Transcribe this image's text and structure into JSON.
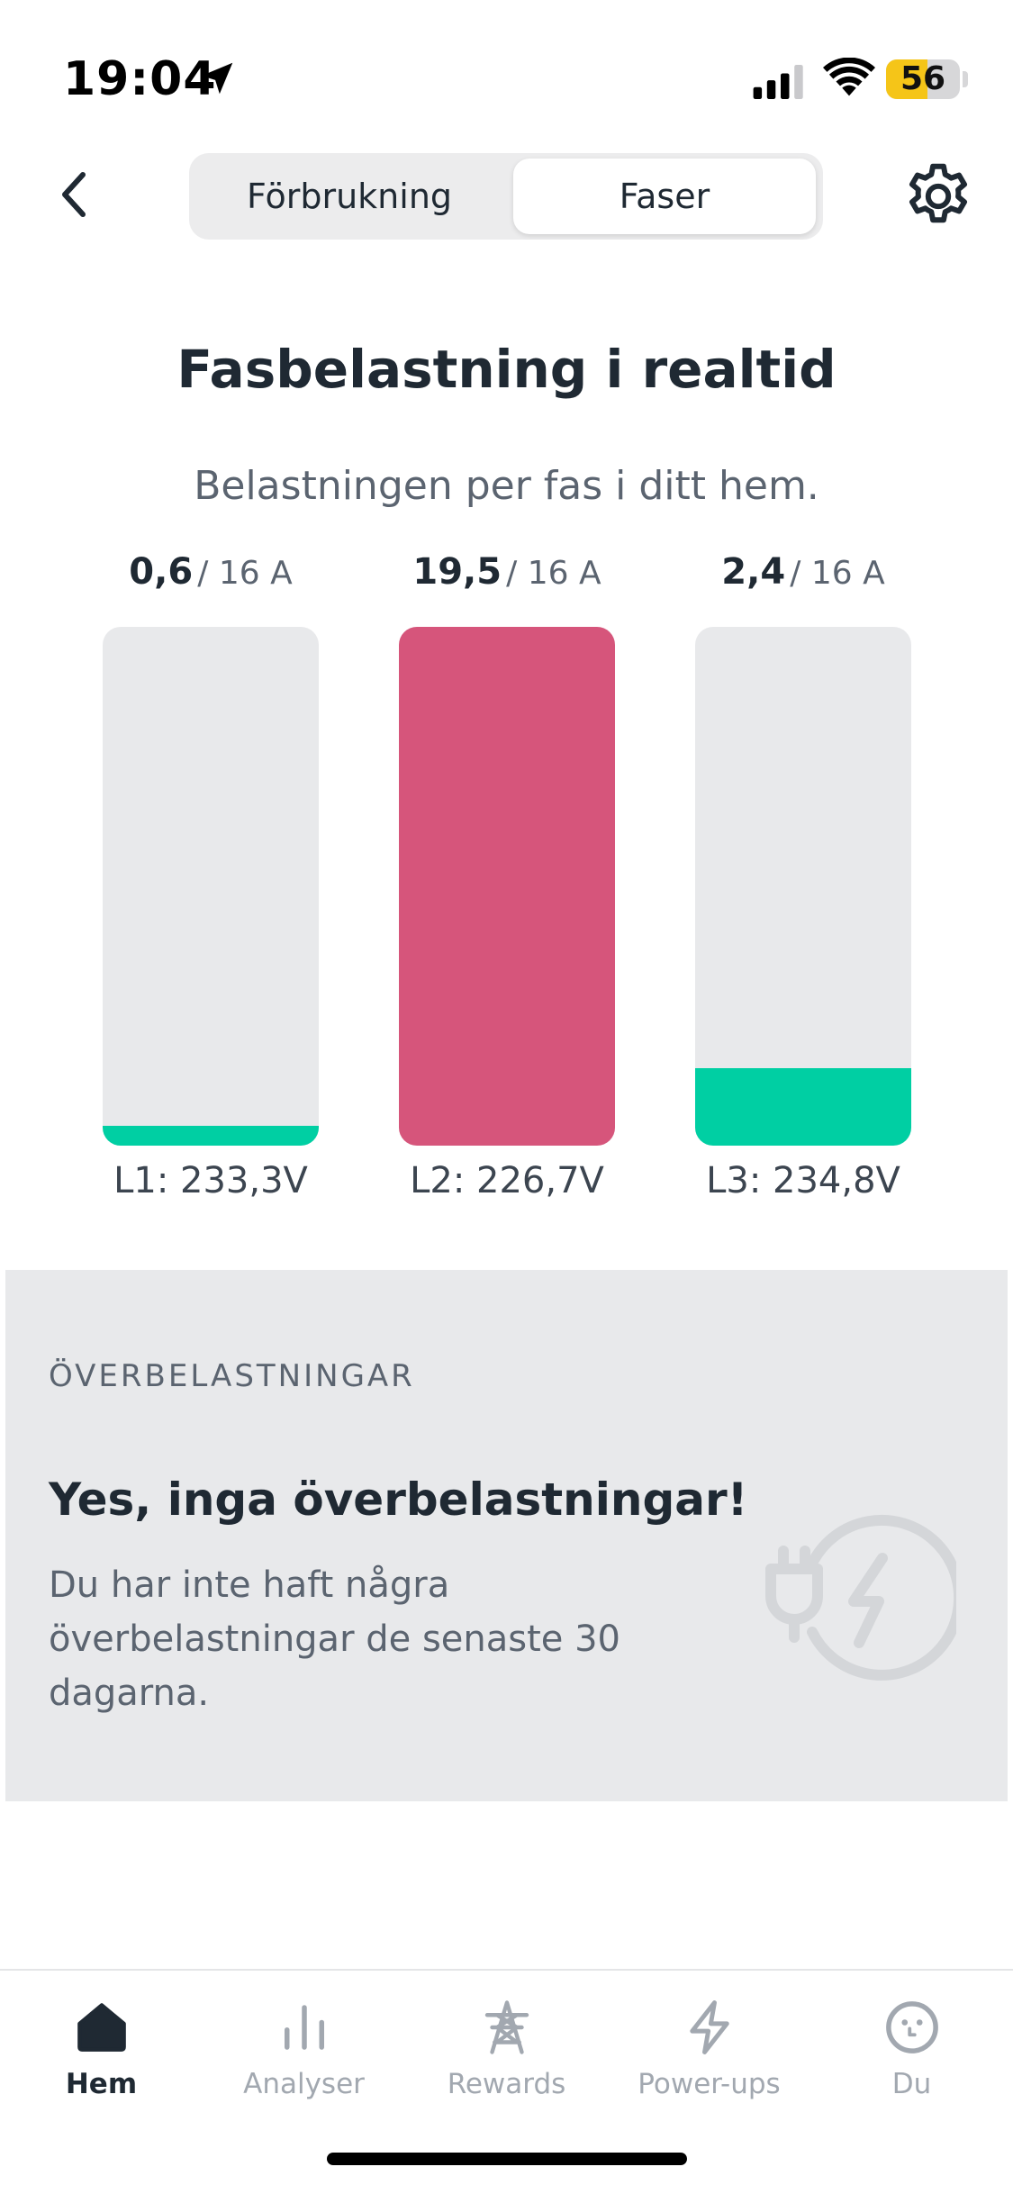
{
  "status_bar": {
    "time": "19:04",
    "battery_percent": "56",
    "battery_level": 0.56,
    "battery_color": "#f5c518",
    "icons": [
      "location-arrow-icon",
      "cellular-signal-icon",
      "wifi-icon"
    ]
  },
  "header": {
    "back_icon": "chevron-left-icon",
    "settings_icon": "gear-icon",
    "tabs": [
      {
        "label": "Förbrukning",
        "selected": false
      },
      {
        "label": "Faser",
        "selected": true
      }
    ]
  },
  "main": {
    "title": "Fasbelastning i realtid",
    "subtitle": "Belastningen per fas i ditt hem.",
    "max_label": "/ 16 A",
    "max_current": 16,
    "phases": [
      {
        "name": "L1",
        "current": "0,6",
        "current_value": 0.6,
        "voltage": "L1: 233,3V",
        "color": "#00cfa3"
      },
      {
        "name": "L2",
        "current": "19,5",
        "current_value": 19.5,
        "voltage": "L2: 226,7V",
        "color": "#d6557b"
      },
      {
        "name": "L3",
        "current": "2,4",
        "current_value": 2.4,
        "voltage": "L3: 234,8V",
        "color": "#00cfa3"
      }
    ]
  },
  "overloads": {
    "heading": "ÖVERBELASTNINGAR",
    "title": "Yes, inga överbelastningar!",
    "description": "Du har inte haft några överbelastningar de senaste 30 dagarna.",
    "icon": "plug-lightning-icon"
  },
  "tab_bar": {
    "items": [
      {
        "label": "Hem",
        "icon": "home-icon",
        "active": true
      },
      {
        "label": "Analyser",
        "icon": "bar-chart-icon",
        "active": false
      },
      {
        "label": "Rewards",
        "icon": "power-tower-icon",
        "active": false
      },
      {
        "label": "Power-ups",
        "icon": "lightning-icon",
        "active": false
      },
      {
        "label": "Du",
        "icon": "face-icon",
        "active": false
      }
    ]
  },
  "colors": {
    "accent_ok": "#00cfa3",
    "accent_overload": "#d6557b",
    "track": "#e8e9eb",
    "text_primary": "#1f2933",
    "text_secondary": "#5b6470"
  }
}
